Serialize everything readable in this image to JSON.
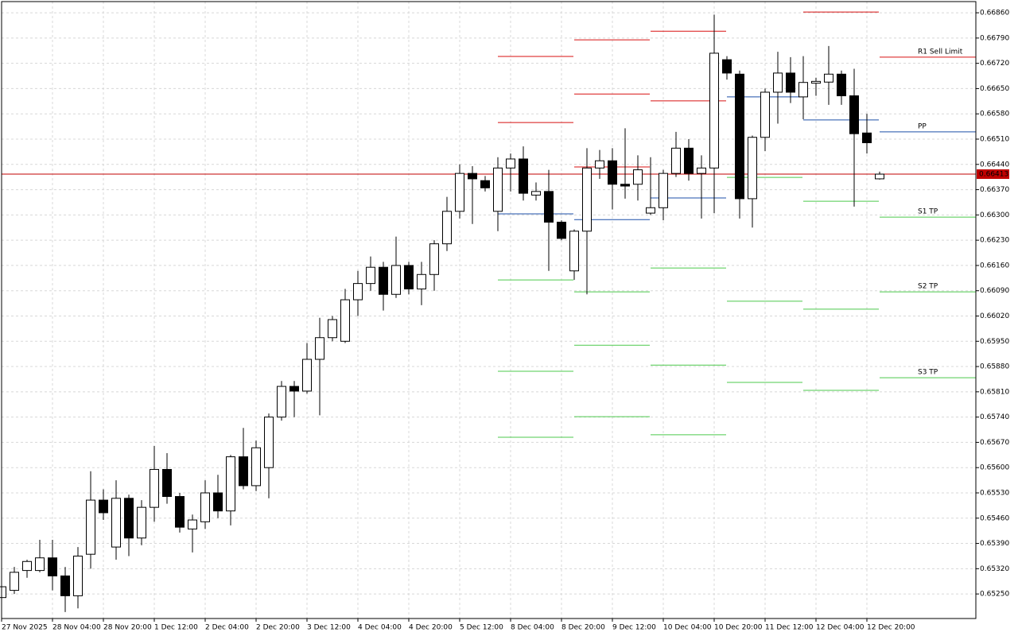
{
  "chart_data": {
    "type": "candlestick",
    "categories": [
      "27 Nov 2025",
      null,
      null,
      null,
      "28 Nov 04:00",
      null,
      null,
      null,
      "28 Nov 20:00",
      null,
      null,
      null,
      "1 Dec 12:00",
      null,
      null,
      null,
      "2 Dec 04:00",
      null,
      null,
      null,
      "2 Dec 20:00",
      null,
      null,
      null,
      "3 Dec 12:00",
      null,
      null,
      null,
      "4 Dec 04:00",
      null,
      null,
      null,
      "4 Dec 20:00",
      null,
      null,
      null,
      "5 Dec 12:00",
      null,
      null,
      null,
      "8 Dec 04:00",
      null,
      null,
      null,
      "8 Dec 20:00",
      null,
      null,
      null,
      "9 Dec 12:00",
      null,
      null,
      null,
      "10 Dec 04:00",
      null,
      null,
      null,
      "10 Dec 20:00",
      null,
      null,
      null,
      "11 Dec 12:00",
      null,
      null,
      null,
      "12 Dec 04:00",
      null,
      null,
      null,
      "12 Dec 20:00",
      null
    ],
    "open": [
      0.6524,
      0.6526,
      0.65315,
      0.65315,
      0.6535,
      0.653,
      0.65245,
      0.6536,
      0.6551,
      0.6538,
      0.65515,
      0.65405,
      0.6549,
      0.65595,
      0.6552,
      0.6543,
      0.6545,
      0.6553,
      0.6548,
      0.6563,
      0.6555,
      0.656,
      0.6574,
      0.65825,
      0.65812,
      0.659,
      0.6596,
      0.6595,
      0.66065,
      0.6611,
      0.66155,
      0.6608,
      0.6616,
      0.66095,
      0.66135,
      0.6622,
      0.6631,
      0.66415,
      0.66395,
      0.6631,
      0.6643,
      0.66455,
      0.66355,
      0.66365,
      0.6628,
      0.66145,
      0.66255,
      0.6643,
      0.6645,
      0.66385,
      0.66385,
      0.66305,
      0.6632,
      0.66415,
      0.66485,
      0.66415,
      0.6643,
      0.6673,
      0.6669,
      0.66345,
      0.66515,
      0.6664,
      0.66693,
      0.66627,
      0.66665,
      0.66668,
      0.6669,
      0.6663,
      0.66527,
      0.664
    ],
    "high": [
      0.6528,
      0.65325,
      0.65345,
      0.654,
      0.654,
      0.65325,
      0.6538,
      0.6559,
      0.6554,
      0.65565,
      0.65525,
      0.6551,
      0.6566,
      0.6564,
      0.6553,
      0.6547,
      0.65565,
      0.6558,
      0.65635,
      0.6571,
      0.65675,
      0.6575,
      0.6584,
      0.6584,
      0.65945,
      0.66015,
      0.6602,
      0.66095,
      0.66145,
      0.66185,
      0.6617,
      0.6624,
      0.6617,
      0.6617,
      0.6623,
      0.6635,
      0.6644,
      0.66435,
      0.66408,
      0.6646,
      0.6647,
      0.6649,
      0.6639,
      0.66425,
      0.66285,
      0.6626,
      0.66485,
      0.6648,
      0.66485,
      0.6654,
      0.66465,
      0.6646,
      0.66425,
      0.6653,
      0.6651,
      0.66465,
      0.66855,
      0.6674,
      0.667,
      0.6652,
      0.6665,
      0.66752,
      0.66737,
      0.6674,
      0.6668,
      0.66768,
      0.667,
      0.66705,
      0.6658,
      0.6642
    ],
    "low": [
      0.65235,
      0.6525,
      0.65295,
      0.6531,
      0.6526,
      0.652,
      0.6521,
      0.6532,
      0.65455,
      0.65345,
      0.65355,
      0.65385,
      0.6545,
      0.655,
      0.6542,
      0.65365,
      0.6543,
      0.6546,
      0.6544,
      0.6554,
      0.65535,
      0.65515,
      0.6573,
      0.6574,
      0.65805,
      0.65745,
      0.6595,
      0.65945,
      0.6602,
      0.6609,
      0.66035,
      0.6607,
      0.6608,
      0.6605,
      0.6609,
      0.662,
      0.6629,
      0.66275,
      0.66365,
      0.66255,
      0.66365,
      0.6634,
      0.6634,
      0.66145,
      0.6623,
      0.6612,
      0.6608,
      0.664,
      0.66315,
      0.66345,
      0.6634,
      0.663,
      0.66285,
      0.66405,
      0.66395,
      0.6629,
      0.66305,
      0.66675,
      0.6629,
      0.66265,
      0.66477,
      0.66553,
      0.6661,
      0.66565,
      0.6663,
      0.66605,
      0.66605,
      0.66323,
      0.6647,
      0.66398
    ],
    "close": [
      0.6527,
      0.6531,
      0.6534,
      0.6535,
      0.653,
      0.65245,
      0.65355,
      0.6551,
      0.65475,
      0.65515,
      0.65405,
      0.6549,
      0.65595,
      0.6552,
      0.65435,
      0.65455,
      0.6553,
      0.6548,
      0.6563,
      0.6555,
      0.65655,
      0.6574,
      0.65825,
      0.65812,
      0.659,
      0.6596,
      0.6601,
      0.66065,
      0.6611,
      0.66155,
      0.6608,
      0.6616,
      0.66095,
      0.66135,
      0.6622,
      0.6631,
      0.66415,
      0.664,
      0.66375,
      0.6643,
      0.66455,
      0.6636,
      0.66365,
      0.6628,
      0.66235,
      0.66255,
      0.6643,
      0.6645,
      0.66385,
      0.6638,
      0.66425,
      0.6632,
      0.66415,
      0.66485,
      0.66415,
      0.6643,
      0.66748,
      0.66693,
      0.66345,
      0.66515,
      0.6664,
      0.66693,
      0.6664,
      0.66667,
      0.6667,
      0.6669,
      0.6663,
      0.66525,
      0.665,
      0.66413
    ],
    "level_periods": [
      39,
      45,
      51,
      57,
      63,
      69
    ],
    "levels": [
      {
        "color": "#d81010",
        "values": [
          null,
          0.66785,
          null,
          null,
          null,
          null
        ]
      },
      {
        "color": "#d81010",
        "values": [
          0.66739,
          0.66635,
          0.66809,
          null,
          null,
          null
        ]
      },
      {
        "color": "#d81010",
        "values": [
          0.66556,
          0.66433,
          0.66616,
          null,
          0.66862,
          0.66737
        ],
        "label": "R1 Sell Limit"
      },
      {
        "color": "#1c4fa8",
        "values": [
          0.66303,
          0.66287,
          0.66347,
          0.66627,
          0.66563,
          0.6653
        ],
        "label": "PP"
      },
      {
        "color": "#4cc94c",
        "values": [
          0.6612,
          0.66087,
          0.66153,
          0.66404,
          0.66338,
          0.66294
        ],
        "label": "S1 TP"
      },
      {
        "color": "#4cc94c",
        "values": [
          0.65867,
          0.65939,
          0.65884,
          0.66061,
          0.66039,
          0.66087
        ],
        "label": "S2 TP"
      },
      {
        "color": "#4cc94c",
        "values": [
          0.65684,
          0.65741,
          0.65691,
          0.65836,
          0.65814,
          0.65849
        ],
        "label": "S3 TP"
      }
    ],
    "last_price": 0.66413,
    "last_price_color": "#c00000",
    "ylim": [
      0.65182,
      0.66891
    ],
    "yticks": [
      {
        "value": 0.6686,
        "label": "0.66860"
      },
      {
        "value": 0.6679,
        "label": "0.66790"
      },
      {
        "value": 0.6672,
        "label": "0.66720"
      },
      {
        "value": 0.6665,
        "label": "0.66650"
      },
      {
        "value": 0.6658,
        "label": "0.66580"
      },
      {
        "value": 0.6651,
        "label": "0.66510"
      },
      {
        "value": 0.6644,
        "label": "0.66440"
      },
      {
        "value": 0.6637,
        "label": "0.66370"
      },
      {
        "value": 0.663,
        "label": "0.66300"
      },
      {
        "value": 0.6623,
        "label": "0.66230"
      },
      {
        "value": 0.6616,
        "label": "0.66160"
      },
      {
        "value": 0.6609,
        "label": "0.66090"
      },
      {
        "value": 0.6602,
        "label": "0.66020"
      },
      {
        "value": 0.6595,
        "label": "0.65950"
      },
      {
        "value": 0.6588,
        "label": "0.65880"
      },
      {
        "value": 0.6581,
        "label": "0.65810"
      },
      {
        "value": 0.6574,
        "label": "0.65740"
      },
      {
        "value": 0.6567,
        "label": "0.65670"
      },
      {
        "value": 0.656,
        "label": "0.65600"
      },
      {
        "value": 0.6553,
        "label": "0.65530"
      },
      {
        "value": 0.6546,
        "label": "0.65460"
      },
      {
        "value": 0.6539,
        "label": "0.65390"
      },
      {
        "value": 0.6532,
        "label": "0.65320"
      },
      {
        "value": 0.6525,
        "label": "0.65250"
      }
    ],
    "grid": true
  }
}
